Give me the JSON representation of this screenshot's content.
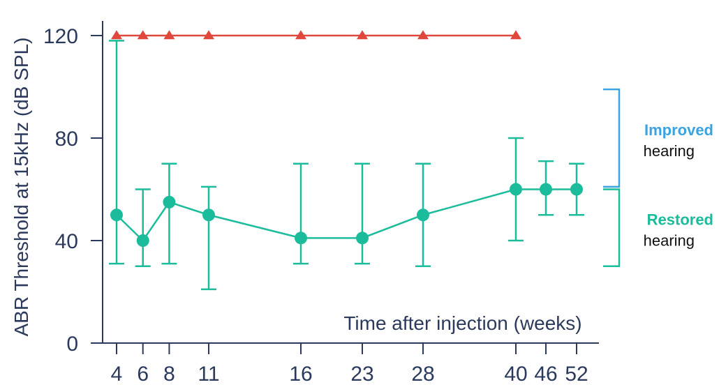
{
  "chart_data": {
    "type": "line",
    "xlabel": "Time after injection (weeks)",
    "ylabel": "ABR Threshold at 15kHz (dB SPL)",
    "x_ticks": [
      4,
      6,
      8,
      11,
      16,
      23,
      28,
      40,
      46,
      52
    ],
    "y_ticks": [
      0,
      40,
      80,
      120
    ],
    "ylim": [
      0,
      120
    ],
    "grid": false,
    "series": [
      {
        "color": "#e0483d",
        "marker": "triangle",
        "x": [
          4,
          6,
          8,
          11,
          16,
          23,
          28,
          40
        ],
        "y": [
          120,
          120,
          120,
          120,
          120,
          120,
          120,
          120
        ]
      },
      {
        "color": "#1bbc9b",
        "marker": "circle",
        "x": [
          4,
          6,
          8,
          11,
          16,
          23,
          28,
          40,
          46,
          52
        ],
        "y": [
          50,
          40,
          55,
          50,
          41,
          41,
          50,
          60,
          60,
          60
        ],
        "err_low": [
          31,
          30,
          31,
          21,
          31,
          31,
          30,
          40,
          50,
          50
        ],
        "err_high": [
          118,
          60,
          70,
          61,
          70,
          70,
          70,
          80,
          71,
          70
        ]
      }
    ],
    "annotations": [
      {
        "title": "Improved",
        "subtitle": "hearing",
        "color": "#3aa3e0",
        "y_range": [
          61,
          99
        ]
      },
      {
        "title": "Restored",
        "subtitle": "hearing",
        "color": "#1bbc9b",
        "y_range": [
          30,
          60
        ]
      }
    ]
  }
}
